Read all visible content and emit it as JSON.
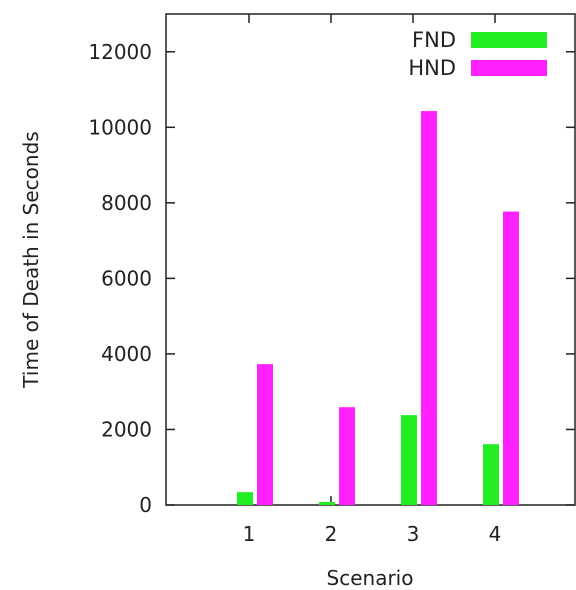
{
  "chart_data": {
    "type": "bar",
    "categories": [
      "1",
      "2",
      "3",
      "4"
    ],
    "series": [
      {
        "name": "FND",
        "values": [
          340,
          80,
          2380,
          1610
        ],
        "color": "#22ee22"
      },
      {
        "name": "HND",
        "values": [
          3730,
          2590,
          10430,
          7770
        ],
        "color": "#ff22ff"
      }
    ],
    "title": "",
    "xlabel": "Scenario",
    "ylabel": "Time of Death in Seconds",
    "ylim": [
      0,
      13000
    ],
    "yticks": [
      0,
      2000,
      4000,
      6000,
      8000,
      10000,
      12000
    ],
    "grid": false,
    "legend_position": "top-right"
  }
}
